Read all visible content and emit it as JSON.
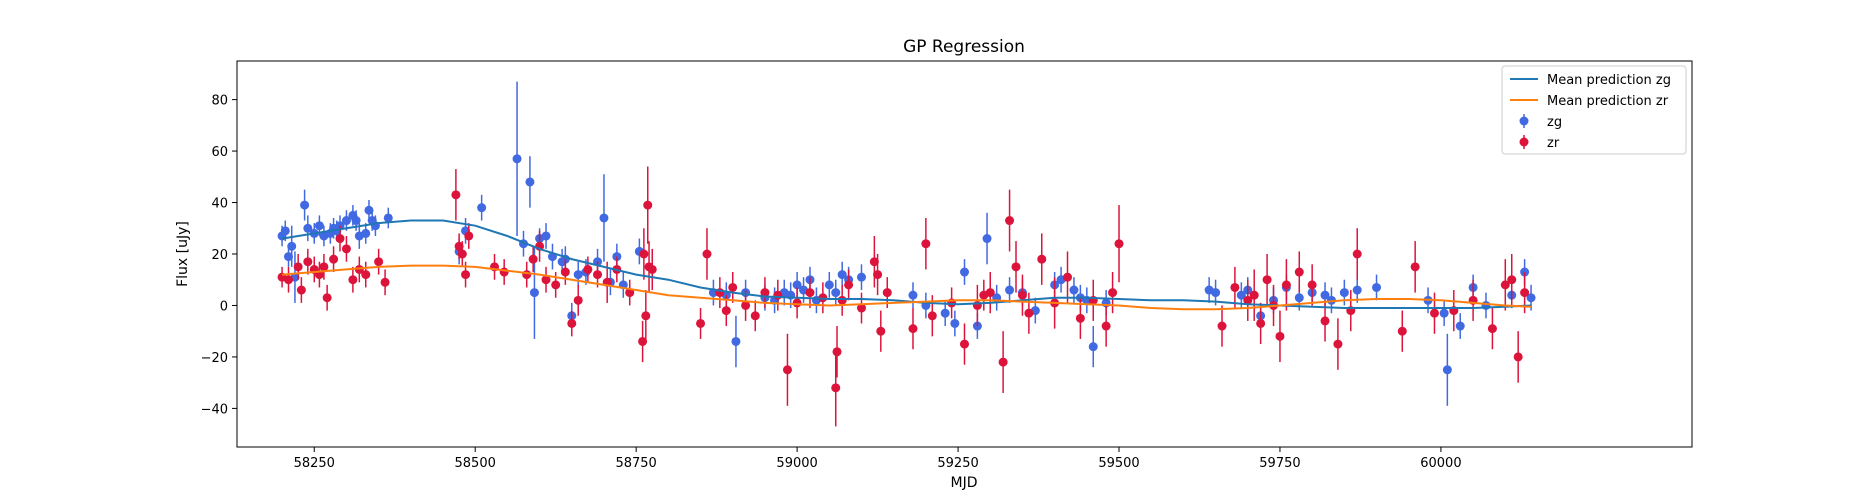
{
  "chart_data": {
    "type": "scatter",
    "title": "GP Regression",
    "xlabel": "MJD",
    "ylabel": "Flux [uJy]",
    "xlim": [
      58130,
      60390
    ],
    "ylim": [
      -55,
      95
    ],
    "x_ticks": [
      58250,
      58500,
      58750,
      59000,
      59250,
      59500,
      59750,
      60000
    ],
    "y_ticks": [
      -40,
      -20,
      0,
      20,
      40,
      60,
      80
    ],
    "grid": false,
    "legend_position": "top-right",
    "colors": {
      "zg_line": "#1f77b4",
      "zr_line": "#ff7f0e",
      "zg_points": "#4169e1",
      "zr_points": "#dc143c"
    },
    "legend": [
      {
        "label": "Mean prediction zg",
        "kind": "line",
        "color": "#1f77b4"
      },
      {
        "label": "Mean prediction zr",
        "kind": "line",
        "color": "#ff7f0e"
      },
      {
        "label": "zg",
        "kind": "errorbar",
        "color": "#4169e1"
      },
      {
        "label": "zr",
        "kind": "errorbar",
        "color": "#dc143c"
      }
    ],
    "series": [
      {
        "name": "Mean prediction zg",
        "kind": "line",
        "x": [
          58200,
          58250,
          58300,
          58350,
          58400,
          58450,
          58500,
          58550,
          58600,
          58650,
          58700,
          58750,
          58800,
          58850,
          58900,
          58950,
          59000,
          59050,
          59100,
          59150,
          59200,
          59250,
          59300,
          59350,
          59400,
          59450,
          59500,
          59550,
          59600,
          59650,
          59700,
          59750,
          59800,
          59850,
          59900,
          59950,
          60000,
          60050,
          60100,
          60140
        ],
        "y": [
          26,
          28,
          30,
          32,
          33,
          33,
          31,
          27,
          22,
          18,
          15,
          12,
          10,
          7,
          5,
          3.5,
          3,
          2.5,
          2.5,
          2,
          1,
          0.5,
          1,
          2,
          3,
          3,
          2.5,
          2,
          2,
          1.5,
          0.5,
          0,
          -0.5,
          -1,
          -1,
          -1,
          -1,
          -1,
          -0.5,
          0
        ]
      },
      {
        "name": "Mean prediction zr",
        "kind": "line",
        "x": [
          58200,
          58250,
          58300,
          58350,
          58400,
          58450,
          58500,
          58550,
          58600,
          58650,
          58700,
          58750,
          58800,
          58850,
          58900,
          58950,
          59000,
          59050,
          59100,
          59150,
          59200,
          59250,
          59300,
          59350,
          59400,
          59450,
          59500,
          59550,
          59600,
          59650,
          59700,
          59750,
          59800,
          59850,
          59900,
          59950,
          60000,
          60050,
          60100,
          60140
        ],
        "y": [
          12,
          13,
          14,
          15,
          15.5,
          15.5,
          15,
          13.5,
          12,
          10,
          8,
          6,
          4,
          3,
          2,
          1,
          0.5,
          0,
          0.5,
          1,
          1.5,
          2,
          2,
          1.5,
          1,
          0.5,
          0,
          -1,
          -1.5,
          -1.5,
          -1,
          0,
          1,
          2,
          2.5,
          2.5,
          2,
          1,
          0,
          -0.5
        ]
      },
      {
        "name": "zg",
        "kind": "errorbar",
        "x": [
          58200,
          58205,
          58210,
          58215,
          58220,
          58235,
          58240,
          58250,
          58258,
          58265,
          58275,
          58280,
          58285,
          58290,
          58300,
          58310,
          58315,
          58320,
          58330,
          58335,
          58340,
          58345,
          58365,
          58475,
          58485,
          58510,
          58565,
          58575,
          58585,
          58592,
          58600,
          58610,
          58620,
          58635,
          58640,
          58650,
          58660,
          58672,
          58690,
          58700,
          58710,
          58720,
          58730,
          58755,
          58870,
          58890,
          58905,
          58920,
          58950,
          58965,
          58980,
          58990,
          59000,
          59010,
          59020,
          59030,
          59050,
          59060,
          59070,
          59080,
          59100,
          59180,
          59200,
          59230,
          59245,
          59260,
          59280,
          59295,
          59310,
          59330,
          59350,
          59370,
          59400,
          59410,
          59430,
          59440,
          59450,
          59460,
          59480,
          59640,
          59650,
          59690,
          59700,
          59720,
          59740,
          59760,
          59780,
          59800,
          59820,
          59830,
          59850,
          59870,
          59900,
          59980,
          60005,
          60010,
          60030,
          60050,
          60070,
          60110,
          60130,
          60140
        ],
        "y": [
          27,
          29,
          19,
          23,
          11,
          39,
          30,
          28,
          31,
          27,
          28,
          30,
          29,
          31,
          33,
          35,
          33,
          27,
          28,
          37,
          33,
          31,
          34,
          21,
          29,
          38,
          57,
          24,
          48,
          5,
          26,
          27,
          19,
          17,
          18,
          -4,
          12,
          13,
          17,
          34,
          9,
          19,
          8,
          21,
          5,
          4,
          -14,
          5,
          3,
          2,
          5,
          4,
          8,
          6,
          10,
          2,
          8,
          5,
          12,
          10,
          11,
          4,
          0,
          -3,
          -7,
          13,
          -8,
          26,
          3,
          6,
          5,
          -2,
          8,
          10,
          6,
          3,
          2,
          -16,
          1,
          6,
          5,
          4,
          6,
          -4,
          2,
          7,
          3,
          5,
          4,
          2,
          5,
          6,
          7,
          2,
          -3,
          -25,
          -8,
          7,
          0,
          4,
          13,
          3
        ],
        "err": [
          4,
          4,
          4,
          8,
          10,
          6,
          5,
          4,
          4,
          4,
          4,
          4,
          4,
          4,
          4,
          4,
          4,
          5,
          4,
          4,
          4,
          4,
          4,
          5,
          5,
          5,
          30,
          5,
          10,
          18,
          4,
          5,
          5,
          5,
          5,
          5,
          5,
          5,
          5,
          17,
          5,
          5,
          5,
          5,
          5,
          5,
          10,
          5,
          5,
          5,
          5,
          5,
          5,
          5,
          5,
          5,
          5,
          5,
          5,
          5,
          5,
          5,
          5,
          5,
          5,
          5,
          5,
          10,
          5,
          5,
          5,
          5,
          5,
          5,
          5,
          5,
          5,
          8,
          5,
          5,
          5,
          5,
          5,
          5,
          5,
          5,
          5,
          5,
          5,
          5,
          5,
          5,
          5,
          5,
          5,
          14,
          5,
          5,
          5,
          5,
          5,
          5
        ]
      },
      {
        "name": "zr",
        "kind": "errorbar",
        "x": [
          58200,
          58210,
          58225,
          58230,
          58240,
          58250,
          58258,
          58265,
          58270,
          58280,
          58290,
          58300,
          58310,
          58320,
          58330,
          58350,
          58360,
          58470,
          58475,
          58480,
          58485,
          58490,
          58530,
          58545,
          58580,
          58590,
          58600,
          58610,
          58625,
          58640,
          58650,
          58660,
          58675,
          58690,
          58705,
          58720,
          58740,
          58760,
          58762,
          58765,
          58768,
          58770,
          58775,
          58850,
          58860,
          58880,
          58890,
          58900,
          58920,
          58935,
          58950,
          58970,
          58985,
          59000,
          59020,
          59040,
          59060,
          59062,
          59070,
          59080,
          59100,
          59120,
          59125,
          59130,
          59140,
          59180,
          59200,
          59210,
          59240,
          59260,
          59280,
          59290,
          59300,
          59320,
          59330,
          59340,
          59350,
          59360,
          59380,
          59400,
          59420,
          59440,
          59460,
          59480,
          59490,
          59500,
          59660,
          59680,
          59700,
          59710,
          59720,
          59730,
          59740,
          59750,
          59760,
          59780,
          59800,
          59820,
          59840,
          59860,
          59870,
          59940,
          59960,
          59990,
          60020,
          60050,
          60080,
          60100,
          60110,
          60120,
          60130
        ],
        "y": [
          11,
          10,
          15,
          6,
          17,
          14,
          12,
          15,
          3,
          18,
          26,
          22,
          10,
          14,
          12,
          17,
          9,
          43,
          23,
          20,
          12,
          27,
          15,
          13,
          12,
          18,
          23,
          10,
          8,
          13,
          -7,
          2,
          14,
          12,
          9,
          14,
          5,
          -14,
          20,
          -4,
          39,
          15,
          14,
          -7,
          20,
          5,
          -2,
          7,
          0,
          -4,
          5,
          4,
          -25,
          1,
          5,
          3,
          -32,
          -18,
          2,
          8,
          -1,
          17,
          12,
          -10,
          5,
          -9,
          24,
          -4,
          1,
          -15,
          0,
          4,
          5,
          -22,
          33,
          15,
          4,
          -3,
          18,
          1,
          11,
          -5,
          2,
          -8,
          5,
          24,
          -8,
          7,
          2,
          4,
          -7,
          10,
          0,
          -12,
          8,
          13,
          8,
          -6,
          -15,
          -2,
          20,
          -10,
          15,
          -3,
          -2,
          2,
          -9,
          8,
          10,
          -20,
          5
        ],
        "err": [
          4,
          5,
          5,
          5,
          5,
          5,
          5,
          5,
          5,
          5,
          5,
          5,
          5,
          5,
          5,
          5,
          5,
          10,
          5,
          5,
          5,
          5,
          5,
          5,
          5,
          5,
          6,
          5,
          5,
          5,
          5,
          6,
          5,
          5,
          8,
          5,
          5,
          8,
          10,
          10,
          15,
          10,
          8,
          6,
          10,
          6,
          6,
          6,
          6,
          6,
          6,
          6,
          14,
          6,
          6,
          6,
          15,
          10,
          6,
          6,
          6,
          10,
          8,
          8,
          6,
          8,
          10,
          8,
          6,
          8,
          8,
          6,
          8,
          12,
          12,
          10,
          8,
          8,
          10,
          10,
          10,
          8,
          8,
          8,
          8,
          15,
          8,
          8,
          8,
          10,
          8,
          10,
          8,
          10,
          10,
          8,
          8,
          8,
          10,
          8,
          10,
          8,
          10,
          8,
          8,
          8,
          8,
          10,
          10,
          10,
          8
        ]
      }
    ]
  }
}
